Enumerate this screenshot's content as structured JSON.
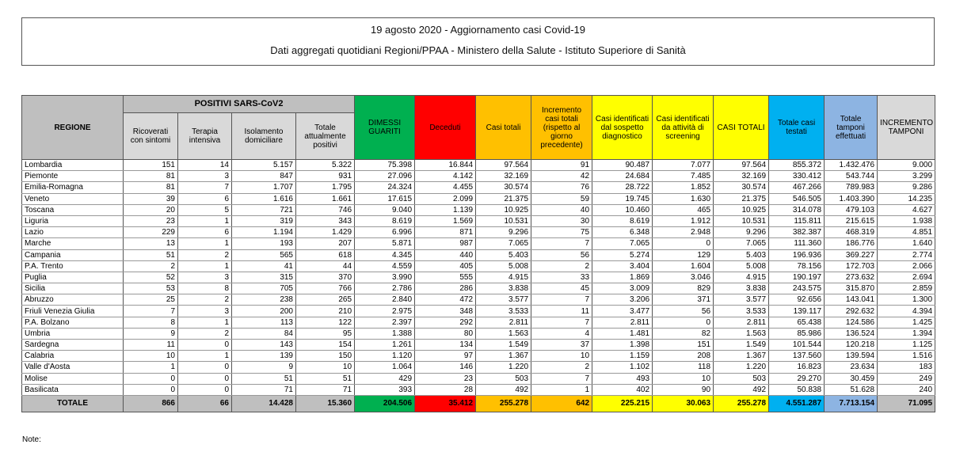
{
  "header": {
    "title": "19 agosto 2020 - Aggiornamento casi Covid-19",
    "subtitle": "Dati aggregati quotidiani Regioni/PPAA - Ministero della Salute - Istituto Superiore di Sanità"
  },
  "table": {
    "group_header": "POSITIVI SARS-CoV2",
    "columns": [
      "REGIONE",
      "Ricoverati con sintomi",
      "Terapia intensiva",
      "Isolamento domiciliare",
      "Totale attualmente positivi",
      "DIMESSI GUARITI",
      "Deceduti",
      "Casi totali",
      "Incremento casi totali (rispetto al giorno precedente)",
      "Casi identificati dal sospetto diagnostico",
      "Casi identificati da attività di screening",
      "CASI TOTALI",
      "Totale casi testati",
      "Totale tamponi effettuati",
      "INCREMENTO TAMPONI"
    ],
    "rows": [
      [
        "Lombardia",
        "151",
        "14",
        "5.157",
        "5.322",
        "75.398",
        "16.844",
        "97.564",
        "91",
        "90.487",
        "7.077",
        "97.564",
        "855.372",
        "1.432.476",
        "9.000"
      ],
      [
        "Piemonte",
        "81",
        "3",
        "847",
        "931",
        "27.096",
        "4.142",
        "32.169",
        "42",
        "24.684",
        "7.485",
        "32.169",
        "330.412",
        "543.744",
        "3.299"
      ],
      [
        "Emilia-Romagna",
        "81",
        "7",
        "1.707",
        "1.795",
        "24.324",
        "4.455",
        "30.574",
        "76",
        "28.722",
        "1.852",
        "30.574",
        "467.266",
        "789.983",
        "9.286"
      ],
      [
        "Veneto",
        "39",
        "6",
        "1.616",
        "1.661",
        "17.615",
        "2.099",
        "21.375",
        "59",
        "19.745",
        "1.630",
        "21.375",
        "546.505",
        "1.403.390",
        "14.235"
      ],
      [
        "Toscana",
        "20",
        "5",
        "721",
        "746",
        "9.040",
        "1.139",
        "10.925",
        "40",
        "10.460",
        "465",
        "10.925",
        "314.078",
        "479.103",
        "4.627"
      ],
      [
        "Liguria",
        "23",
        "1",
        "319",
        "343",
        "8.619",
        "1.569",
        "10.531",
        "30",
        "8.619",
        "1.912",
        "10.531",
        "115.811",
        "215.615",
        "1.938"
      ],
      [
        "Lazio",
        "229",
        "6",
        "1.194",
        "1.429",
        "6.996",
        "871",
        "9.296",
        "75",
        "6.348",
        "2.948",
        "9.296",
        "382.387",
        "468.319",
        "4.851"
      ],
      [
        "Marche",
        "13",
        "1",
        "193",
        "207",
        "5.871",
        "987",
        "7.065",
        "7",
        "7.065",
        "0",
        "7.065",
        "111.360",
        "186.776",
        "1.640"
      ],
      [
        "Campania",
        "51",
        "2",
        "565",
        "618",
        "4.345",
        "440",
        "5.403",
        "56",
        "5.274",
        "129",
        "5.403",
        "196.936",
        "369.227",
        "2.774"
      ],
      [
        "P.A. Trento",
        "2",
        "1",
        "41",
        "44",
        "4.559",
        "405",
        "5.008",
        "2",
        "3.404",
        "1.604",
        "5.008",
        "78.156",
        "172.703",
        "2.066"
      ],
      [
        "Puglia",
        "52",
        "3",
        "315",
        "370",
        "3.990",
        "555",
        "4.915",
        "33",
        "1.869",
        "3.046",
        "4.915",
        "190.197",
        "273.632",
        "2.694"
      ],
      [
        "Sicilia",
        "53",
        "8",
        "705",
        "766",
        "2.786",
        "286",
        "3.838",
        "45",
        "3.009",
        "829",
        "3.838",
        "243.575",
        "315.870",
        "2.859"
      ],
      [
        "Abruzzo",
        "25",
        "2",
        "238",
        "265",
        "2.840",
        "472",
        "3.577",
        "7",
        "3.206",
        "371",
        "3.577",
        "92.656",
        "143.041",
        "1.300"
      ],
      [
        "Friuli Venezia Giulia",
        "7",
        "3",
        "200",
        "210",
        "2.975",
        "348",
        "3.533",
        "11",
        "3.477",
        "56",
        "3.533",
        "139.117",
        "292.632",
        "4.394"
      ],
      [
        "P.A. Bolzano",
        "8",
        "1",
        "113",
        "122",
        "2.397",
        "292",
        "2.811",
        "7",
        "2.811",
        "0",
        "2.811",
        "65.438",
        "124.586",
        "1.425"
      ],
      [
        "Umbria",
        "9",
        "2",
        "84",
        "95",
        "1.388",
        "80",
        "1.563",
        "4",
        "1.481",
        "82",
        "1.563",
        "85.986",
        "136.524",
        "1.394"
      ],
      [
        "Sardegna",
        "11",
        "0",
        "143",
        "154",
        "1.261",
        "134",
        "1.549",
        "37",
        "1.398",
        "151",
        "1.549",
        "101.544",
        "120.218",
        "1.125"
      ],
      [
        "Calabria",
        "10",
        "1",
        "139",
        "150",
        "1.120",
        "97",
        "1.367",
        "10",
        "1.159",
        "208",
        "1.367",
        "137.560",
        "139.594",
        "1.516"
      ],
      [
        "Valle d'Aosta",
        "1",
        "0",
        "9",
        "10",
        "1.064",
        "146",
        "1.220",
        "2",
        "1.102",
        "118",
        "1.220",
        "16.823",
        "23.634",
        "183"
      ],
      [
        "Molise",
        "0",
        "0",
        "51",
        "51",
        "429",
        "23",
        "503",
        "7",
        "493",
        "10",
        "503",
        "29.270",
        "30.459",
        "249"
      ],
      [
        "Basilicata",
        "0",
        "0",
        "71",
        "71",
        "393",
        "28",
        "492",
        "1",
        "402",
        "90",
        "492",
        "50.838",
        "51.628",
        "240"
      ]
    ],
    "total": [
      "TOTALE",
      "866",
      "66",
      "14.428",
      "15.360",
      "204.506",
      "35.412",
      "255.278",
      "642",
      "225.215",
      "30.063",
      "255.278",
      "4.551.287",
      "7.713.154",
      "71.095"
    ]
  },
  "note": "Note:"
}
